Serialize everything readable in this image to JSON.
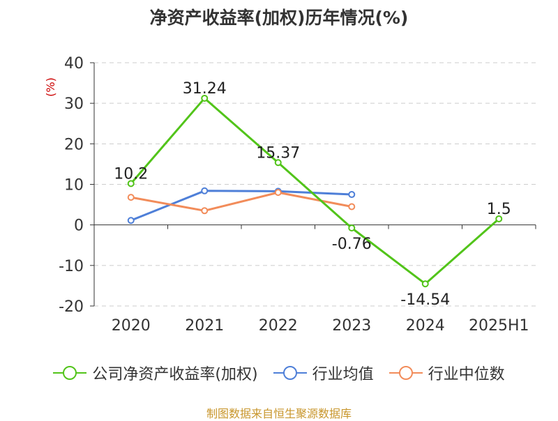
{
  "chart_data": {
    "type": "line",
    "title": "净资产收益率(加权)历年情况(%)",
    "ylabel": "(%)",
    "categories": [
      "2020",
      "2021",
      "2022",
      "2023",
      "2024",
      "2025H1"
    ],
    "ylim": [
      -20,
      40
    ],
    "yticks": [
      40,
      30,
      20,
      10,
      0,
      -10,
      -20
    ],
    "grid": true,
    "legend_position": "bottom",
    "series": [
      {
        "name": "公司净资产收益率(加权)",
        "color": "#52c41a",
        "values": [
          10.2,
          31.24,
          15.37,
          -0.76,
          -14.54,
          1.5
        ],
        "labels": [
          "10.2",
          "31.24",
          "15.37",
          "-0.76",
          "-14.54",
          "1.5"
        ]
      },
      {
        "name": "行业均值",
        "color": "#4e7fd8",
        "values": [
          1.1,
          8.4,
          8.3,
          7.5,
          null,
          null
        ]
      },
      {
        "name": "行业中位数",
        "color": "#f28c5a",
        "values": [
          6.8,
          3.5,
          8.0,
          4.5,
          null,
          null
        ]
      }
    ]
  },
  "footer": {
    "source": "制图数据来自恒生聚源数据库"
  }
}
